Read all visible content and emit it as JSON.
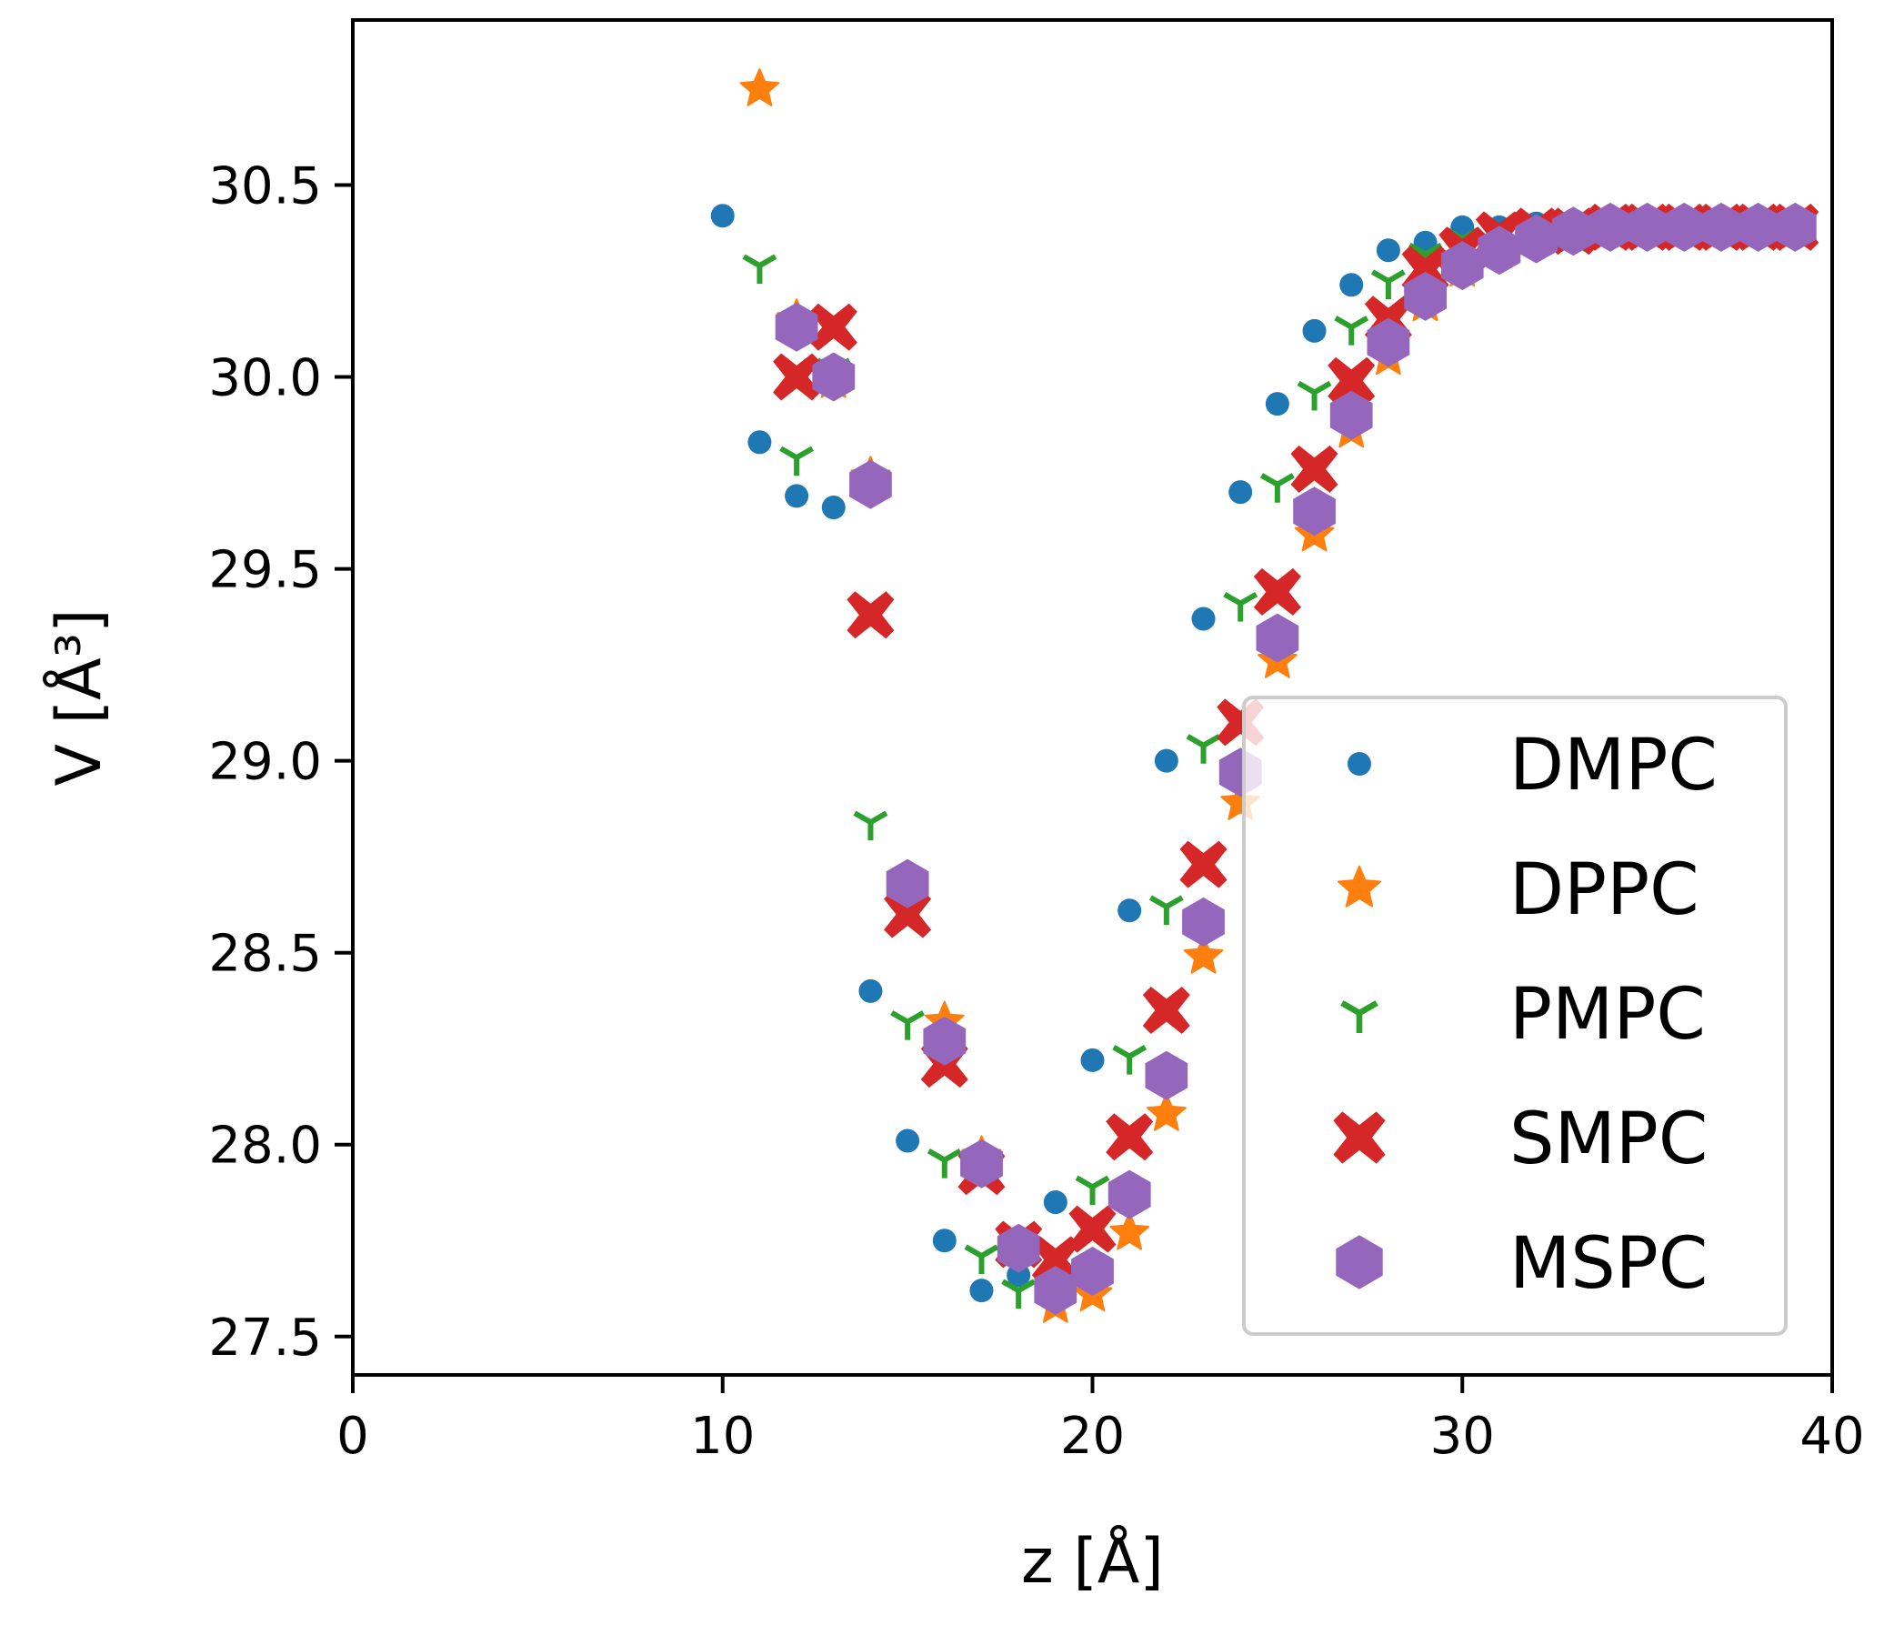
{
  "chart_data": {
    "type": "scatter",
    "title": "",
    "xlabel": "z [Å]",
    "ylabel": "V [Å³]",
    "xlim": [
      0,
      40
    ],
    "ylim": [
      27.4,
      30.93
    ],
    "xticks": [
      0,
      10,
      20,
      30,
      40
    ],
    "xtick_labels": [
      "0",
      "10",
      "20",
      "30",
      "40"
    ],
    "yticks": [
      27.5,
      28.0,
      28.5,
      29.0,
      29.5,
      30.0,
      30.5
    ],
    "ytick_labels": [
      "27.5",
      "28.0",
      "28.5",
      "29.0",
      "29.5",
      "30.0",
      "30.5"
    ],
    "grid": false,
    "legend_position": "lower-right",
    "series": [
      {
        "name": "DMPC",
        "marker": "circle",
        "color": "#1f77b4",
        "x": [
          10,
          11,
          12,
          13,
          14,
          15,
          16,
          17,
          18,
          19,
          20,
          21,
          22,
          23,
          24,
          25,
          26,
          27,
          28,
          29,
          30,
          31,
          32,
          33,
          34,
          35,
          36,
          37,
          38,
          39
        ],
        "y": [
          30.42,
          29.83,
          29.69,
          29.66,
          28.4,
          28.01,
          27.75,
          27.62,
          27.66,
          27.85,
          28.22,
          28.61,
          29.0,
          29.37,
          29.7,
          29.93,
          30.12,
          30.24,
          30.33,
          30.35,
          30.39,
          30.39,
          30.4,
          30.4,
          30.4,
          30.4,
          30.4,
          30.4,
          30.4,
          30.4
        ]
      },
      {
        "name": "DPPC",
        "marker": "star",
        "color": "#ff7f0e",
        "x": [
          11,
          12,
          13,
          14,
          15,
          16,
          17,
          18,
          19,
          20,
          21,
          22,
          23,
          24,
          25,
          26,
          27,
          28,
          29,
          30,
          31,
          32,
          33,
          34,
          35,
          36,
          37,
          38,
          39
        ],
        "y": [
          30.75,
          30.15,
          29.99,
          29.74,
          28.63,
          28.32,
          27.97,
          27.73,
          27.58,
          27.61,
          27.77,
          28.08,
          28.49,
          28.89,
          29.26,
          29.59,
          29.86,
          30.05,
          30.19,
          30.28,
          30.33,
          30.36,
          30.37,
          30.38,
          30.38,
          30.38,
          30.38,
          30.38,
          30.38
        ]
      },
      {
        "name": "PMPC",
        "marker": "tri_down",
        "color": "#2ca02c",
        "x": [
          11,
          12,
          13,
          14,
          15,
          16,
          17,
          18,
          19,
          20,
          21,
          22,
          23,
          24,
          25,
          26,
          27,
          28,
          29,
          30,
          31,
          32,
          33,
          34,
          35,
          36,
          37,
          38,
          39
        ],
        "y": [
          30.29,
          29.79,
          30.02,
          28.84,
          28.32,
          27.96,
          27.71,
          27.62,
          27.7,
          27.89,
          28.23,
          28.62,
          29.04,
          29.41,
          29.72,
          29.96,
          30.13,
          30.25,
          30.32,
          30.36,
          30.38,
          30.39,
          30.39,
          30.39,
          30.39,
          30.39,
          30.39,
          30.39,
          30.39
        ]
      },
      {
        "name": "SMPC",
        "marker": "X",
        "color": "#d62728",
        "x": [
          12,
          13,
          14,
          15,
          16,
          17,
          18,
          19,
          20,
          21,
          22,
          23,
          24,
          25,
          26,
          27,
          28,
          29,
          30,
          31,
          32,
          33,
          34,
          35,
          36,
          37,
          38,
          39
        ],
        "y": [
          30.0,
          30.13,
          29.38,
          28.6,
          28.21,
          27.93,
          27.74,
          27.7,
          27.78,
          28.02,
          28.35,
          28.73,
          29.1,
          29.44,
          29.76,
          29.99,
          30.15,
          30.28,
          30.33,
          30.37,
          30.38,
          30.38,
          30.39,
          30.39,
          30.39,
          30.39,
          30.39,
          30.39
        ]
      },
      {
        "name": "MSPC",
        "marker": "hexagon",
        "color": "#9467bd",
        "x": [
          12,
          13,
          14,
          15,
          16,
          17,
          18,
          19,
          20,
          21,
          22,
          23,
          24,
          25,
          26,
          27,
          28,
          29,
          30,
          31,
          32,
          33,
          34,
          35,
          36,
          37,
          38,
          39
        ],
        "y": [
          30.13,
          30.0,
          29.72,
          28.68,
          28.27,
          27.95,
          27.73,
          27.62,
          27.67,
          27.87,
          28.18,
          28.58,
          28.97,
          29.32,
          29.65,
          29.9,
          30.09,
          30.21,
          30.29,
          30.33,
          30.36,
          30.38,
          30.39,
          30.39,
          30.39,
          30.39,
          30.39,
          30.39
        ]
      }
    ]
  }
}
